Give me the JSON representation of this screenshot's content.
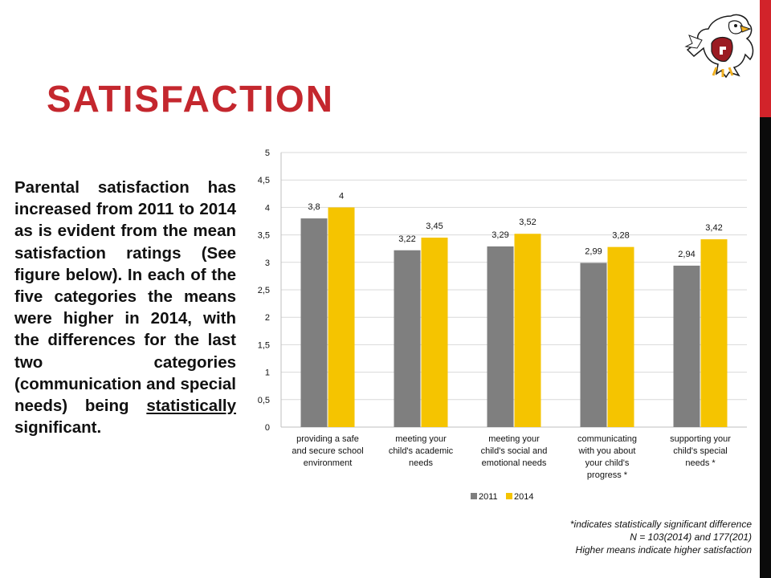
{
  "slide": {
    "title": "SATISFACTION",
    "body_part1": "Parental satisfaction has increased from 2011 to 2014 as is evident from the mean satisfaction ratings (See figure below). In each of the five categories the means were higher in 2014, with the differences for the last two categories (communication and special needs) being ",
    "body_underlined": "statistically",
    "body_part2": " significant.",
    "notes": [
      "*indicates statistically significant difference",
      "N = 103(2014) and 177(201)",
      "Higher means indicate higher satisfaction"
    ]
  },
  "colors": {
    "title": "#c4272e",
    "rail_red": "#d2232a",
    "rail_dark": "#0b0b0b"
  },
  "chart_data": {
    "type": "bar",
    "categories": [
      [
        "providing a safe",
        "and secure school",
        "environment"
      ],
      [
        "meeting your",
        "child's academic",
        "needs"
      ],
      [
        "meeting your",
        "child's social and",
        "emotional needs"
      ],
      [
        "communicating",
        "with you about",
        "your child's",
        "progress *"
      ],
      [
        "supporting your",
        "child's special",
        "needs *"
      ]
    ],
    "series": [
      {
        "name": "2011",
        "color": "#7f7f7f",
        "values": [
          3.8,
          3.22,
          3.29,
          2.99,
          2.94
        ],
        "labels": [
          "3,8",
          "3,22",
          "3,29",
          "2,99",
          "2,94"
        ]
      },
      {
        "name": "2014",
        "color": "#f5c400",
        "values": [
          4,
          3.45,
          3.52,
          3.28,
          3.42
        ],
        "labels": [
          "4",
          "3,45",
          "3,52",
          "3,28",
          "3,42"
        ]
      }
    ],
    "y_ticks": [
      "0",
      "0,5",
      "1",
      "1,5",
      "2",
      "2,5",
      "3",
      "3,5",
      "4",
      "4,5",
      "5"
    ],
    "ylim": [
      0,
      5
    ],
    "grid": true,
    "legend": "bottom"
  }
}
